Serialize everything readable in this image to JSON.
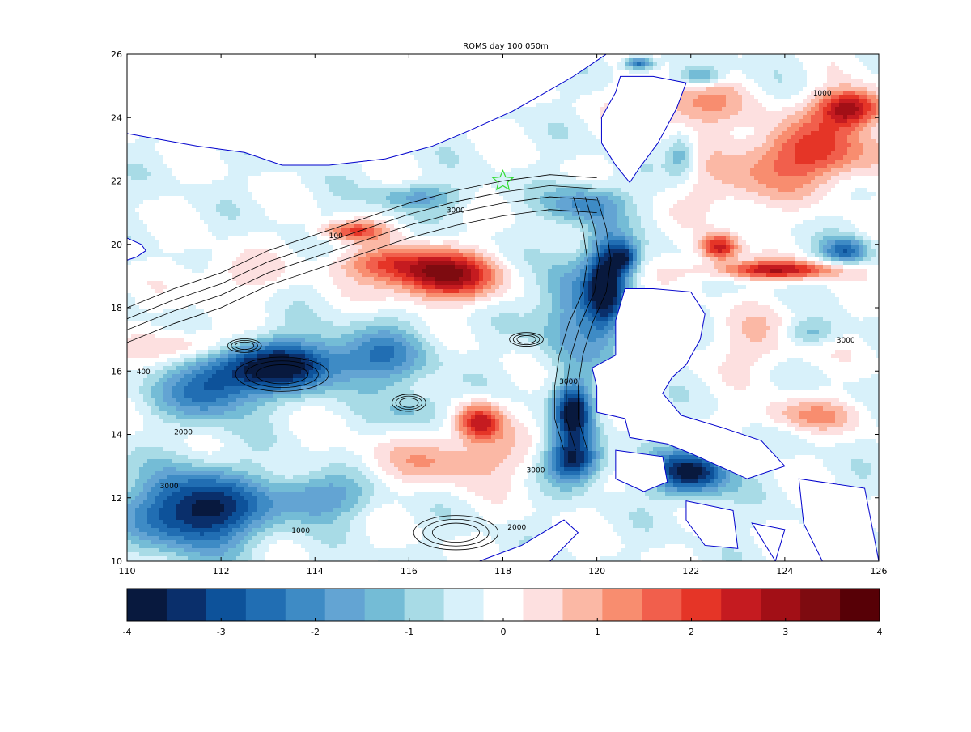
{
  "title": "ROMS  day  100 050m",
  "map": {
    "lon_range": [
      110,
      126
    ],
    "lat_range": [
      10,
      26
    ],
    "lon_ticks": [
      110,
      112,
      114,
      116,
      118,
      120,
      122,
      124,
      126
    ],
    "lat_ticks": [
      10,
      12,
      14,
      16,
      18,
      20,
      22,
      24,
      26
    ],
    "lon_tick_labels": [
      "110",
      "112",
      "114",
      "116",
      "118",
      "120",
      "122",
      "124",
      "126"
    ],
    "lat_tick_labels": [
      "10",
      "12",
      "14",
      "16",
      "18",
      "20",
      "22",
      "24",
      "26"
    ],
    "contour_labels": [
      {
        "text": "100",
        "lon": 114.3,
        "lat": 20.2
      },
      {
        "text": "3000",
        "lon": 116.8,
        "lat": 21.0
      },
      {
        "text": "1000",
        "lon": 124.6,
        "lat": 24.7
      },
      {
        "text": "400",
        "lon": 110.2,
        "lat": 15.9
      },
      {
        "text": "2000",
        "lon": 111.0,
        "lat": 14.0
      },
      {
        "text": "3000",
        "lon": 110.7,
        "lat": 12.3
      },
      {
        "text": "1000",
        "lon": 113.5,
        "lat": 10.9
      },
      {
        "text": "3000",
        "lon": 119.2,
        "lat": 15.6
      },
      {
        "text": "2000",
        "lon": 118.1,
        "lat": 11.0
      },
      {
        "text": "3000",
        "lon": 125.1,
        "lat": 16.9
      },
      {
        "text": "3000",
        "lon": 118.5,
        "lat": 12.8
      }
    ]
  },
  "colors": {
    "land": "#ffffff",
    "coastline": "#0000cc",
    "contour": "#000000",
    "marker": "#33dd33"
  },
  "anomalies": [
    {
      "lon": 116.7,
      "lat": 19.0,
      "amp": 3.3,
      "sx": 1.2,
      "sy": 0.75
    },
    {
      "lon": 117.5,
      "lat": 14.4,
      "amp": 2.8,
      "sx": 0.5,
      "sy": 0.6
    },
    {
      "lon": 117.0,
      "lat": 13.2,
      "amp": 1.3,
      "sx": 1.6,
      "sy": 0.8
    },
    {
      "lon": 115.5,
      "lat": 19.4,
      "amp": 1.5,
      "sx": 1.2,
      "sy": 0.5
    },
    {
      "lon": 114.8,
      "lat": 20.4,
      "amp": 2.0,
      "sx": 0.7,
      "sy": 0.3
    },
    {
      "lon": 122.6,
      "lat": 19.9,
      "amp": 3.0,
      "sx": 0.4,
      "sy": 0.4
    },
    {
      "lon": 123.8,
      "lat": 19.2,
      "amp": 2.8,
      "sx": 1.4,
      "sy": 0.3
    },
    {
      "lon": 124.6,
      "lat": 22.9,
      "amp": 2.3,
      "sx": 1.4,
      "sy": 1.0
    },
    {
      "lon": 125.4,
      "lat": 24.3,
      "amp": 3.4,
      "sx": 0.7,
      "sy": 0.6
    },
    {
      "lon": 122.0,
      "lat": 24.4,
      "amp": 1.4,
      "sx": 1.2,
      "sy": 0.8
    },
    {
      "lon": 123.0,
      "lat": 21.8,
      "amp": 0.9,
      "sx": 1.2,
      "sy": 1.0
    },
    {
      "lon": 123.5,
      "lat": 17.0,
      "amp": 0.8,
      "sx": 1.2,
      "sy": 1.0
    },
    {
      "lon": 124.5,
      "lat": 14.6,
      "amp": 1.2,
      "sx": 1.2,
      "sy": 0.5
    },
    {
      "lon": 111.4,
      "lat": 16.8,
      "amp": 1.3,
      "sx": 1.0,
      "sy": 0.5
    },
    {
      "lon": 112.2,
      "lat": 19.0,
      "amp": 0.7,
      "sx": 1.0,
      "sy": 0.7
    },
    {
      "lon": 113.3,
      "lat": 16.2,
      "amp": -3.6,
      "sx": 1.4,
      "sy": 0.8
    },
    {
      "lon": 111.8,
      "lat": 15.4,
      "amp": -2.4,
      "sx": 1.0,
      "sy": 0.9
    },
    {
      "lon": 111.5,
      "lat": 11.6,
      "amp": -3.8,
      "sx": 1.3,
      "sy": 1.2
    },
    {
      "lon": 114.0,
      "lat": 12.0,
      "amp": -1.8,
      "sx": 1.0,
      "sy": 0.7
    },
    {
      "lon": 119.5,
      "lat": 18.0,
      "amp": -1.8,
      "sx": 0.8,
      "sy": 1.8
    },
    {
      "lon": 120.2,
      "lat": 18.8,
      "amp": -3.2,
      "sx": 0.4,
      "sy": 1.5
    },
    {
      "lon": 119.5,
      "lat": 14.7,
      "amp": -3.6,
      "sx": 0.4,
      "sy": 0.9
    },
    {
      "lon": 119.5,
      "lat": 13.2,
      "amp": -3.4,
      "sx": 0.6,
      "sy": 0.7
    },
    {
      "lon": 122.0,
      "lat": 12.8,
      "amp": -3.6,
      "sx": 0.8,
      "sy": 0.7
    },
    {
      "lon": 120.6,
      "lat": 19.6,
      "amp": -2.5,
      "sx": 0.3,
      "sy": 0.5
    },
    {
      "lon": 119.8,
      "lat": 21.3,
      "amp": -1.8,
      "sx": 0.8,
      "sy": 0.6
    },
    {
      "lon": 115.5,
      "lat": 16.5,
      "amp": -1.6,
      "sx": 1.0,
      "sy": 1.0
    },
    {
      "lon": 116.2,
      "lat": 14.8,
      "amp": -1.0,
      "sx": 0.7,
      "sy": 0.6
    },
    {
      "lon": 116.2,
      "lat": 21.5,
      "amp": -1.3,
      "sx": 1.0,
      "sy": 0.4
    },
    {
      "lon": 121.8,
      "lat": 22.8,
      "amp": -1.3,
      "sx": 0.3,
      "sy": 0.7
    },
    {
      "lon": 125.3,
      "lat": 19.8,
      "amp": -2.2,
      "sx": 0.5,
      "sy": 0.4
    },
    {
      "lon": 124.5,
      "lat": 17.2,
      "amp": -1.2,
      "sx": 0.6,
      "sy": 0.4
    },
    {
      "lon": 122.2,
      "lat": 25.3,
      "amp": -1.6,
      "sx": 0.5,
      "sy": 0.3
    },
    {
      "lon": 120.9,
      "lat": 25.7,
      "amp": -2.6,
      "sx": 0.3,
      "sy": 0.2
    }
  ],
  "land": {
    "china": [
      [
        110,
        26
      ],
      [
        110,
        23.5
      ],
      [
        111.5,
        23.1
      ],
      [
        112.5,
        22.9
      ],
      [
        113.3,
        22.5
      ],
      [
        114.3,
        22.5
      ],
      [
        115.5,
        22.7
      ],
      [
        116.5,
        23.1
      ],
      [
        117.3,
        23.6
      ],
      [
        118.2,
        24.2
      ],
      [
        118.8,
        24.7
      ],
      [
        119.5,
        25.3
      ],
      [
        120.0,
        25.8
      ],
      [
        120.2,
        26
      ]
    ],
    "hainan": [
      [
        110,
        21.5
      ],
      [
        110,
        20.2
      ],
      [
        110.3,
        20.0
      ],
      [
        110.4,
        19.8
      ],
      [
        110.2,
        19.6
      ],
      [
        110,
        19.5
      ]
    ],
    "taiwan": [
      [
        120.5,
        25.3
      ],
      [
        121.2,
        25.3
      ],
      [
        121.9,
        25.1
      ],
      [
        121.7,
        24.3
      ],
      [
        121.3,
        23.2
      ],
      [
        120.9,
        22.4
      ],
      [
        120.7,
        21.95
      ],
      [
        120.4,
        22.5
      ],
      [
        120.1,
        23.2
      ],
      [
        120.1,
        24.0
      ],
      [
        120.4,
        24.8
      ]
    ],
    "luzon": [
      [
        120.6,
        18.6
      ],
      [
        121.2,
        18.6
      ],
      [
        122.0,
        18.5
      ],
      [
        122.3,
        17.8
      ],
      [
        122.2,
        17.0
      ],
      [
        121.9,
        16.2
      ],
      [
        121.6,
        15.8
      ],
      [
        121.4,
        15.3
      ],
      [
        121.8,
        14.6
      ],
      [
        122.7,
        14.2
      ],
      [
        123.5,
        13.8
      ],
      [
        124.0,
        13.0
      ],
      [
        123.2,
        12.6
      ],
      [
        122.0,
        13.4
      ],
      [
        121.5,
        13.7
      ],
      [
        120.7,
        13.9
      ],
      [
        120.6,
        14.5
      ],
      [
        120.0,
        14.7
      ],
      [
        120.0,
        15.5
      ],
      [
        119.9,
        16.1
      ],
      [
        120.4,
        16.5
      ],
      [
        120.4,
        17.6
      ]
    ],
    "mindoro": [
      [
        120.4,
        13.5
      ],
      [
        121.4,
        13.3
      ],
      [
        121.5,
        12.5
      ],
      [
        121.0,
        12.2
      ],
      [
        120.4,
        12.6
      ]
    ],
    "panay": [
      [
        121.9,
        11.9
      ],
      [
        122.9,
        11.6
      ],
      [
        123.0,
        10.4
      ],
      [
        122.3,
        10.5
      ],
      [
        121.9,
        11.3
      ]
    ],
    "samar": [
      [
        124.3,
        12.6
      ],
      [
        125.7,
        12.3
      ],
      [
        126,
        10
      ],
      [
        124.8,
        10
      ],
      [
        124.4,
        11.2
      ]
    ],
    "palawan": [
      [
        117.5,
        10
      ],
      [
        118.4,
        10.5
      ],
      [
        119.3,
        11.3
      ],
      [
        119.6,
        10.9
      ],
      [
        119.0,
        10
      ]
    ],
    "cebu": [
      [
        123.3,
        11.2
      ],
      [
        124.0,
        11.0
      ],
      [
        123.8,
        10
      ]
    ]
  },
  "marker": {
    "lon": 118.0,
    "lat": 22.0
  },
  "colorbar": {
    "min": -4,
    "max": 4,
    "tick_labels": [
      "-4",
      "-3",
      "-2",
      "-1",
      "0",
      "1",
      "2",
      "3",
      "4"
    ],
    "colors": [
      "#08193e",
      "#0a2f6b",
      "#0d529a",
      "#216eb3",
      "#3e8bc5",
      "#63a4d3",
      "#74bcd6",
      "#a8dbe6",
      "#d8f1fa",
      "#ffffff",
      "#fde0e0",
      "#fbb8a5",
      "#f88d6f",
      "#f15f4c",
      "#e53527",
      "#c51b20",
      "#a20f16",
      "#7e0b10",
      "#570006"
    ]
  }
}
